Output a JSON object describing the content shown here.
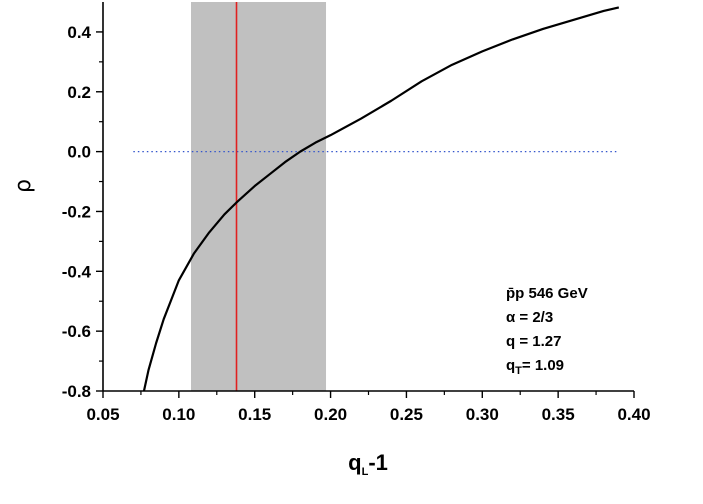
{
  "chart_data": {
    "type": "line",
    "title": "",
    "xlabel": {
      "main": "q",
      "sub": "L",
      "suffix": "-1"
    },
    "ylabel": "ρ",
    "xlim": [
      0.05,
      0.4
    ],
    "ylim": [
      -0.8,
      0.5
    ],
    "xticks": [
      0.05,
      0.1,
      0.15,
      0.2,
      0.25,
      0.3,
      0.35,
      0.4
    ],
    "xtick_labels": [
      "0.05",
      "0.10",
      "0.15",
      "0.20",
      "0.25",
      "0.30",
      "0.35",
      "0.40"
    ],
    "yticks": [
      -0.8,
      -0.6,
      -0.4,
      -0.2,
      0.0,
      0.2,
      0.4
    ],
    "ytick_labels": [
      "-0.8",
      "-0.6",
      "-0.4",
      "-0.2",
      "0.0",
      "0.2",
      "0.4"
    ],
    "grid": false,
    "series": [
      {
        "x": [
          0.077,
          0.08,
          0.085,
          0.09,
          0.095,
          0.1,
          0.11,
          0.12,
          0.13,
          0.138,
          0.15,
          0.16,
          0.17,
          0.18,
          0.19,
          0.2,
          0.22,
          0.24,
          0.26,
          0.28,
          0.3,
          0.32,
          0.34,
          0.36,
          0.38,
          0.39
        ],
        "y": [
          -0.8,
          -0.73,
          -0.64,
          -0.56,
          -0.495,
          -0.43,
          -0.34,
          -0.27,
          -0.21,
          -0.17,
          -0.115,
          -0.075,
          -0.035,
          0.0,
          0.03,
          0.055,
          0.11,
          0.17,
          0.235,
          0.29,
          0.335,
          0.375,
          0.41,
          0.44,
          0.47,
          0.482
        ],
        "color": "#000000"
      }
    ],
    "reference_hline": {
      "y": 0.0,
      "x_range": [
        0.07,
        0.39
      ],
      "color": "#3355cc",
      "style": "dotted"
    },
    "shaded_band": {
      "x_range": [
        0.108,
        0.197
      ],
      "color": "#c0c0c0"
    },
    "vline": {
      "x": 0.138,
      "color": "#e02020"
    },
    "annotation": {
      "lines": [
        {
          "text": "p̄p 546 GeV"
        },
        {
          "text": "α = 2/3"
        },
        {
          "text": "q = 1.27"
        },
        {
          "main": "q",
          "sub": "T",
          "suffix": "= 1.09"
        }
      ]
    }
  }
}
